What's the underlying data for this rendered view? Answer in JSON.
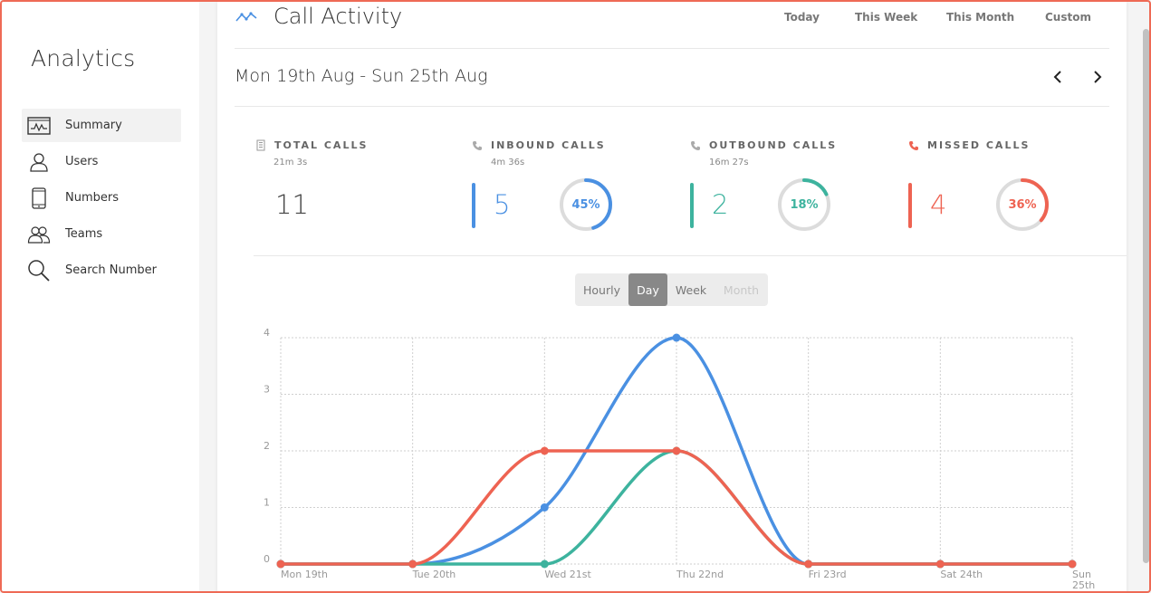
{
  "sidebar": {
    "title": "Analytics",
    "items": [
      {
        "label": "Summary",
        "icon": "summary-chart-icon",
        "active": true
      },
      {
        "label": "Users",
        "icon": "user-icon"
      },
      {
        "label": "Numbers",
        "icon": "phone-device-icon"
      },
      {
        "label": "Teams",
        "icon": "teams-icon"
      },
      {
        "label": "Search Number",
        "icon": "search-icon"
      }
    ]
  },
  "header": {
    "title": "Call Activity",
    "ranges": [
      "Today",
      "This Week",
      "This Month",
      "Custom"
    ],
    "date_range": "Mon 19th Aug - Sun 25th Aug"
  },
  "stats": [
    {
      "title": "TOTAL CALLS",
      "duration": "21m 3s",
      "value": "11",
      "icon": "building-icon",
      "color": "#444444"
    },
    {
      "title": "INBOUND CALLS",
      "duration": "4m 36s",
      "value": "5",
      "percent_label": "45%",
      "percent": 45,
      "icon": "phone-icon",
      "color": "#4a90e2"
    },
    {
      "title": "OUTBOUND CALLS",
      "duration": "16m 27s",
      "value": "2",
      "percent_label": "18%",
      "percent": 18,
      "icon": "phone-outgoing-icon",
      "color": "#3db39e"
    },
    {
      "title": "MISSED CALLS",
      "duration": "",
      "value": "4",
      "percent_label": "36%",
      "percent": 36,
      "icon": "phone-missed-icon",
      "color": "#ee6352"
    }
  ],
  "granularity": {
    "options": [
      "Hourly",
      "Day",
      "Week",
      "Month"
    ],
    "selected": "Day",
    "disabled": [
      "Month"
    ]
  },
  "chart_data": {
    "type": "line",
    "categories": [
      "Mon 19th",
      "Tue 20th",
      "Wed 21st",
      "Thu 22nd",
      "Fri 23rd",
      "Sat 24th",
      "Sun 25th"
    ],
    "ylim": [
      0,
      4
    ],
    "yticks": [
      "0",
      "1",
      "2",
      "3",
      "4"
    ],
    "grid": true,
    "series": [
      {
        "values": [
          0,
          0,
          1,
          4,
          0,
          0,
          0
        ],
        "color": "#4a90e2"
      },
      {
        "values": [
          0,
          0,
          0,
          2,
          0,
          0,
          0
        ],
        "color": "#3db39e"
      },
      {
        "values": [
          0,
          0,
          2,
          2,
          0,
          0,
          0
        ],
        "color": "#ee6352"
      }
    ]
  }
}
